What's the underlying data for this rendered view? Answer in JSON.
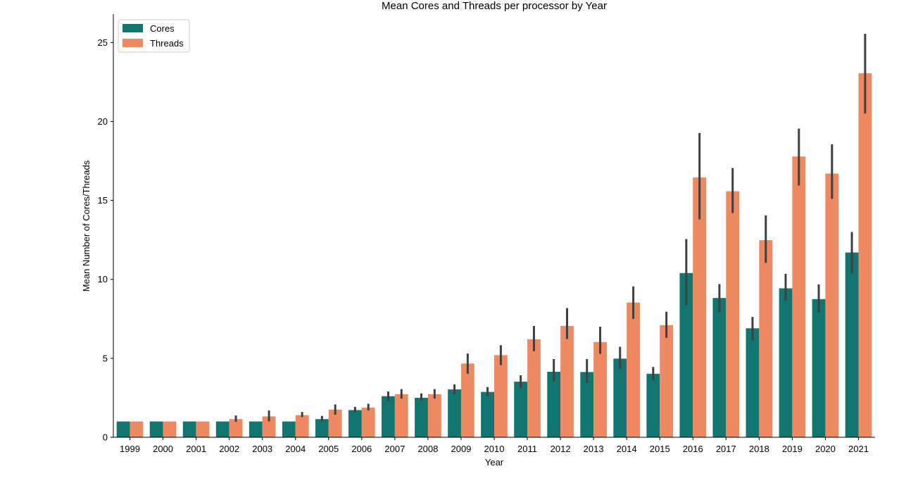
{
  "chart_data": {
    "type": "bar",
    "title": "Mean Cores and Threads per processor by Year",
    "xlabel": "Year",
    "ylabel": "Mean Number of Cores/Threads",
    "ylim": [
      0,
      26.8
    ],
    "yticks": [
      0,
      5,
      10,
      15,
      20,
      25
    ],
    "grid": false,
    "legend_position": "top-left",
    "categories": [
      "1999",
      "2000",
      "2001",
      "2002",
      "2003",
      "2004",
      "2005",
      "2006",
      "2007",
      "2008",
      "2009",
      "2010",
      "2011",
      "2012",
      "2013",
      "2014",
      "2015",
      "2016",
      "2017",
      "2018",
      "2019",
      "2020",
      "2021"
    ],
    "series": [
      {
        "name": "Cores",
        "color": "#117570",
        "values": [
          1.0,
          1.0,
          1.0,
          1.0,
          1.0,
          1.0,
          1.15,
          1.72,
          2.6,
          2.5,
          3.03,
          2.87,
          3.52,
          4.15,
          4.13,
          4.98,
          4.02,
          10.4,
          8.82,
          6.9,
          9.43,
          8.75,
          11.7
        ],
        "error": [
          [
            1.0,
            1.0
          ],
          [
            1.0,
            1.0
          ],
          [
            1.0,
            1.0
          ],
          [
            1.0,
            1.0
          ],
          [
            1.0,
            1.0
          ],
          [
            1.0,
            1.0
          ],
          [
            1.0,
            1.35
          ],
          [
            1.58,
            1.92
          ],
          [
            2.3,
            2.9
          ],
          [
            2.32,
            2.78
          ],
          [
            2.73,
            3.35
          ],
          [
            2.6,
            3.18
          ],
          [
            3.1,
            3.92
          ],
          [
            3.55,
            4.95
          ],
          [
            3.45,
            4.95
          ],
          [
            4.35,
            5.73
          ],
          [
            3.62,
            4.45
          ],
          [
            8.35,
            12.55
          ],
          [
            7.92,
            9.7
          ],
          [
            6.15,
            7.62
          ],
          [
            8.65,
            10.35
          ],
          [
            7.9,
            9.68
          ],
          [
            10.4,
            13.0
          ]
        ]
      },
      {
        "name": "Threads",
        "color": "#ee8961",
        "values": [
          1.0,
          1.0,
          1.0,
          1.15,
          1.32,
          1.4,
          1.75,
          1.88,
          2.73,
          2.73,
          4.67,
          5.2,
          6.2,
          7.05,
          6.03,
          8.53,
          7.1,
          16.45,
          15.58,
          12.48,
          17.78,
          16.7,
          23.05
        ],
        "error": [
          [
            1.0,
            1.0
          ],
          [
            1.0,
            1.0
          ],
          [
            1.0,
            1.0
          ],
          [
            0.98,
            1.38
          ],
          [
            1.0,
            1.7
          ],
          [
            1.28,
            1.6
          ],
          [
            1.43,
            2.08
          ],
          [
            1.7,
            2.12
          ],
          [
            2.45,
            3.05
          ],
          [
            2.45,
            3.05
          ],
          [
            4.02,
            5.3
          ],
          [
            4.57,
            5.83
          ],
          [
            5.45,
            7.05
          ],
          [
            6.22,
            8.18
          ],
          [
            5.28,
            7.0
          ],
          [
            7.5,
            9.55
          ],
          [
            6.3,
            7.95
          ],
          [
            13.8,
            19.27
          ],
          [
            14.2,
            17.05
          ],
          [
            11.05,
            14.05
          ],
          [
            15.95,
            19.55
          ],
          [
            15.1,
            18.55
          ],
          [
            20.5,
            25.55
          ]
        ]
      }
    ]
  }
}
